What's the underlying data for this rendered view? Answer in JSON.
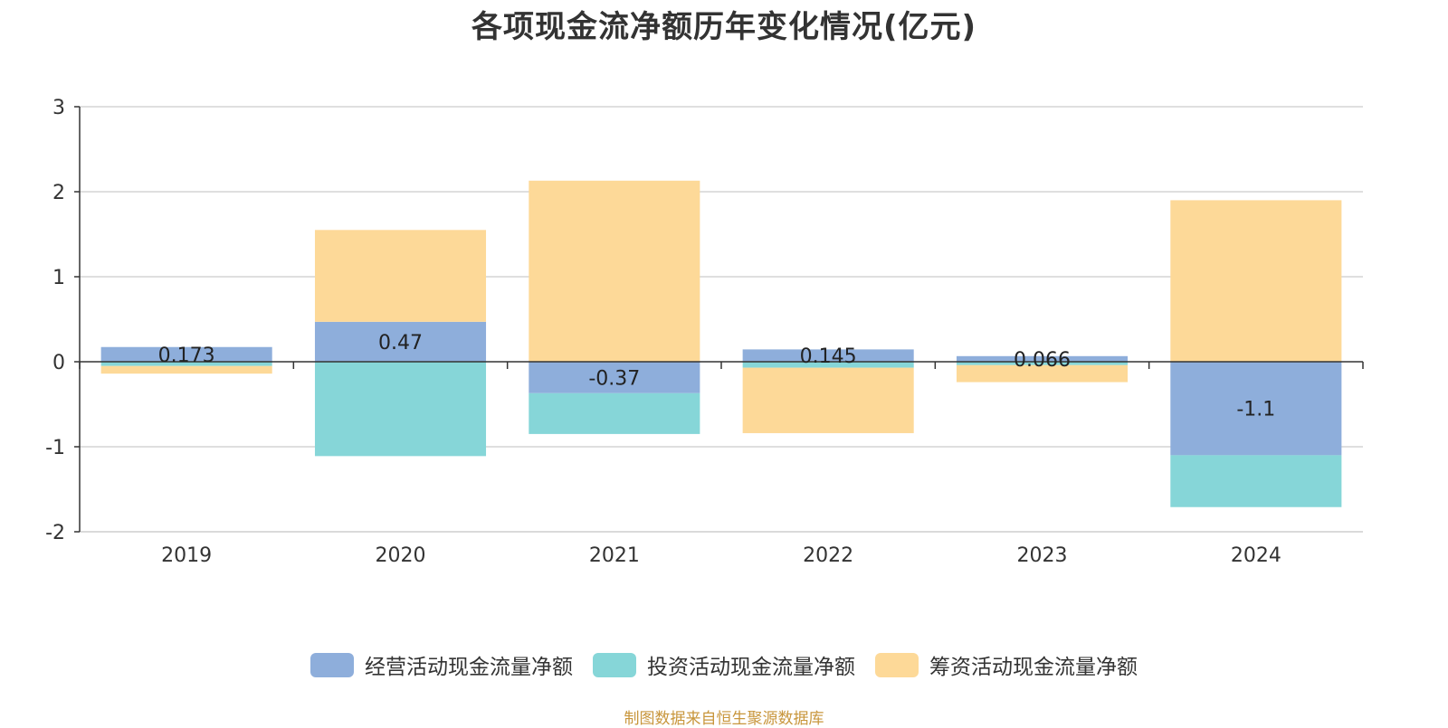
{
  "title": "各项现金流净额历年变化情况(亿元)",
  "source_text": "制图数据来自恒生聚源数据库",
  "colors": {
    "operating": "#8eaedb",
    "investing": "#86d6d8",
    "financing": "#fdd998",
    "axis": "#333333",
    "grid": "#cccccc"
  },
  "chart_data": {
    "type": "bar",
    "stacked": true,
    "title": "各项现金流净额历年变化情况(亿元)",
    "categories": [
      "2019",
      "2020",
      "2021",
      "2022",
      "2023",
      "2024"
    ],
    "ylim": [
      -2,
      3
    ],
    "yticks": [
      -2,
      -1,
      0,
      1,
      2,
      3
    ],
    "grid": true,
    "legend_position": "bottom",
    "series": [
      {
        "name": "经营活动现金流量净额",
        "color_key": "operating",
        "values": [
          0.173,
          0.47,
          -0.37,
          0.145,
          0.066,
          -1.1
        ],
        "labels": [
          "0.173",
          "0.47",
          "-0.37",
          "0.145",
          "0.066",
          "-1.1"
        ]
      },
      {
        "name": "投资活动现金流量净额",
        "color_key": "investing",
        "values": [
          -0.05,
          -1.11,
          -0.48,
          -0.07,
          -0.04,
          -0.61
        ]
      },
      {
        "name": "筹资活动现金流量净额",
        "color_key": "financing",
        "values": [
          -0.09,
          1.08,
          2.13,
          -0.77,
          -0.2,
          1.9
        ]
      }
    ]
  }
}
